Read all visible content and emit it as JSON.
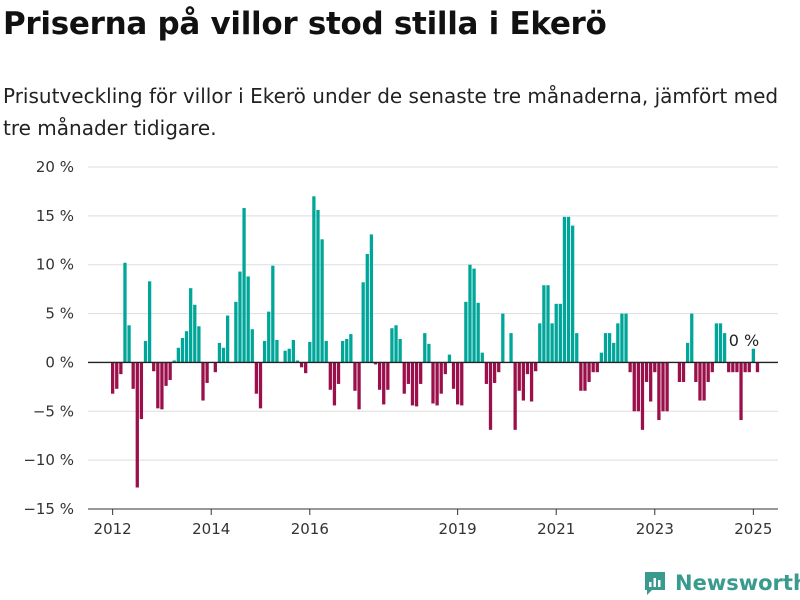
{
  "title": "Priserna på villor stod stilla i Ekerö",
  "subtitle": "Prisutveckling för villor i Ekerö under de senaste tre månaderna, jämfört med tre månader tidigare.",
  "brand": "Newsworthy",
  "colors": {
    "positive": "#00a699",
    "negative": "#9b0f4a",
    "grid": "#dddddd",
    "axis": "#333333",
    "brand": "#3a9a8e"
  },
  "chart_data": {
    "type": "bar",
    "ylim": [
      -15,
      20
    ],
    "yticks": [
      -15,
      -10,
      -5,
      0,
      5,
      10,
      15,
      20
    ],
    "ytick_labels": [
      "−15 %",
      "−10 %",
      "−5 %",
      "0 %",
      "5 %",
      "10 %",
      "15 %",
      "20 %"
    ],
    "xlim": [
      2011.5,
      2025.5
    ],
    "xticks": [
      2012,
      2014,
      2016,
      2019,
      2021,
      2023,
      2025
    ],
    "xtick_labels": [
      "2012",
      "2014",
      "2016",
      "2019",
      "2021",
      "2023",
      "2025"
    ],
    "grid": true,
    "annotation": "0 %",
    "series": [
      {
        "start": "2012-01",
        "interval": "month",
        "values": [
          -3.2,
          -2.7,
          -1.2,
          10.2,
          3.8,
          -2.7,
          -12.8,
          -5.8,
          2.2,
          8.3,
          -0.9,
          -4.7,
          -4.8,
          -2.4,
          -1.8,
          0.2,
          1.5,
          2.5,
          3.2,
          7.6,
          5.9,
          3.7,
          -3.9,
          -2.1,
          0.0,
          -1.0,
          2.0,
          1.5,
          4.8,
          0.0,
          6.2,
          9.3,
          15.8,
          8.8,
          3.4,
          -3.2,
          -4.7,
          2.2,
          5.2,
          9.9,
          2.3,
          0.0,
          1.2,
          1.4,
          2.3,
          0.2,
          -0.5,
          -1.1,
          2.1,
          17.0,
          15.6,
          12.6,
          2.2,
          -2.8,
          -4.4,
          -2.2,
          2.2,
          2.4,
          2.9,
          -2.9,
          -4.8,
          8.2,
          11.1,
          13.1,
          -0.2,
          -2.8,
          -4.3,
          -2.8,
          3.5,
          3.8,
          2.4,
          -3.2,
          -2.2,
          -4.4,
          -4.5,
          -2.2,
          3.0,
          1.9,
          -4.2,
          -4.4,
          -3.2,
          -1.2,
          0.8,
          -2.7,
          -4.3,
          -4.4,
          6.2,
          10.0,
          9.6,
          6.1,
          1.0,
          -2.2,
          -6.9,
          -2.1,
          -1.0,
          5.0,
          0.0,
          3.0,
          -6.9,
          -2.9,
          -3.9,
          -1.2,
          -4.0,
          -0.9,
          4.0,
          7.9,
          7.9,
          4.0,
          6.0,
          6.0,
          14.9,
          14.9,
          14.0,
          3.0,
          -2.9,
          -2.9,
          -2.0,
          -1.0,
          -1.0,
          1.0,
          3.0,
          3.0,
          2.0,
          4.0,
          5.0,
          5.0,
          -1.0,
          -5.0,
          -5.0,
          -6.9,
          -2.0,
          -4.0,
          -1.0,
          -5.9,
          -5.0,
          -5.0,
          0.0,
          0.0,
          -2.0,
          -2.0,
          2.0,
          5.0,
          -2.0,
          -3.9,
          -3.9,
          -2.0,
          -1.0,
          4.0,
          4.0,
          3.0,
          -1.0,
          -1.0,
          -1.0,
          -5.9,
          -1.0,
          -1.0,
          1.4,
          -1.0
        ]
      }
    ]
  }
}
